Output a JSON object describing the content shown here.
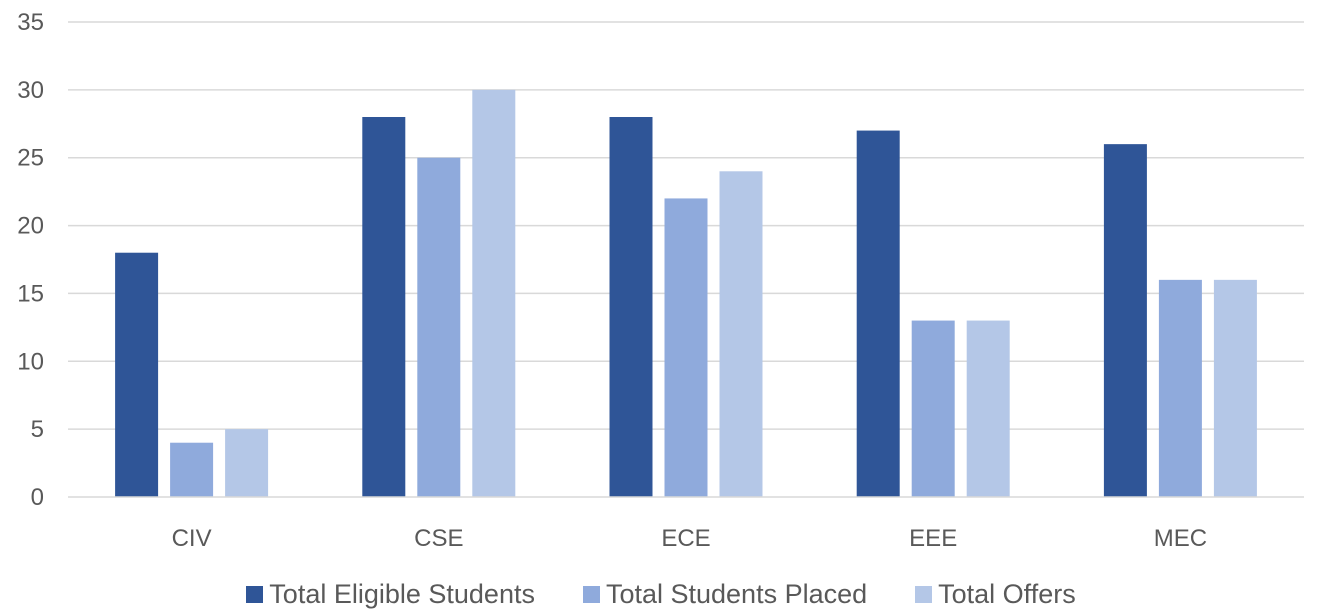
{
  "chart_data": {
    "type": "bar",
    "categories": [
      "CIV",
      "CSE",
      "ECE",
      "EEE",
      "MEC"
    ],
    "series": [
      {
        "name": "Total Eligible Students",
        "values": [
          18,
          28,
          28,
          27,
          26
        ],
        "color": "#2f5597"
      },
      {
        "name": "Total Students Placed",
        "values": [
          4,
          25,
          22,
          13,
          16
        ],
        "color": "#8faadc"
      },
      {
        "name": "Total Offers",
        "values": [
          5,
          30,
          24,
          13,
          16
        ],
        "color": "#b4c7e7"
      }
    ],
    "ylim": [
      0,
      35
    ],
    "yticks": [
      0,
      5,
      10,
      15,
      20,
      25,
      30,
      35
    ],
    "grid": true,
    "legend_position": "bottom",
    "title": "",
    "xlabel": "",
    "ylabel": ""
  }
}
